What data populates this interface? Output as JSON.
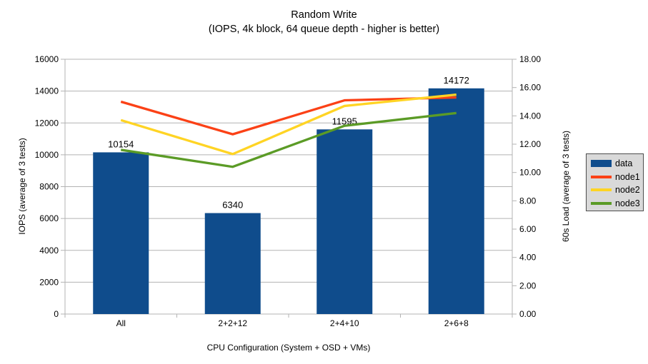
{
  "chart_data": {
    "type": "bar+line",
    "title": "Random Write",
    "subtitle": "(IOPS, 4k block, 64 queue depth - higher is better)",
    "xlabel": "CPU Configuration (System + OSD + VMs)",
    "categories": [
      "All",
      "2+2+12",
      "2+4+10",
      "2+6+8"
    ],
    "left_axis": {
      "label": "IOPS (average of 3 tests)",
      "min": 0,
      "max": 16000,
      "ticks": [
        "0",
        "2000",
        "4000",
        "6000",
        "8000",
        "10000",
        "12000",
        "14000",
        "16000"
      ]
    },
    "right_axis": {
      "label": "60s Load (average of 3 tests)",
      "min": 0,
      "max": 18,
      "ticks": [
        "0.00",
        "2.00",
        "4.00",
        "6.00",
        "8.00",
        "10.00",
        "12.00",
        "14.00",
        "16.00",
        "18.00"
      ]
    },
    "bar_series": {
      "name": "data",
      "axis": "left",
      "color": "#0F4C8C",
      "values": [
        10154,
        6340,
        11595,
        14172
      ],
      "data_labels": [
        "10154",
        "6340",
        "11595",
        "14172"
      ]
    },
    "line_series": [
      {
        "name": "node1",
        "axis": "right",
        "color": "#FB4116",
        "values": [
          15.0,
          12.7,
          15.1,
          15.3
        ]
      },
      {
        "name": "node2",
        "axis": "right",
        "color": "#FFD424",
        "values": [
          13.7,
          11.3,
          14.7,
          15.5
        ]
      },
      {
        "name": "node3",
        "axis": "right",
        "color": "#5B9B26",
        "values": [
          11.6,
          10.4,
          13.3,
          14.2
        ]
      }
    ],
    "grid": "horizontal",
    "legend": {
      "position": "right",
      "items": [
        {
          "label": "data",
          "shape": "rect",
          "color": "#0F4C8C"
        },
        {
          "label": "node1",
          "shape": "line",
          "color": "#FB4116"
        },
        {
          "label": "node2",
          "shape": "line",
          "color": "#FFD424"
        },
        {
          "label": "node3",
          "shape": "line",
          "color": "#5B9B26"
        }
      ]
    }
  },
  "colors": {
    "background": "#ffffff",
    "grid": "#b3b3b3",
    "axis": "#b3b3b3",
    "text": "#000000",
    "legend_bg": "#d9d9d9",
    "legend_border": "#4d4d4d"
  }
}
